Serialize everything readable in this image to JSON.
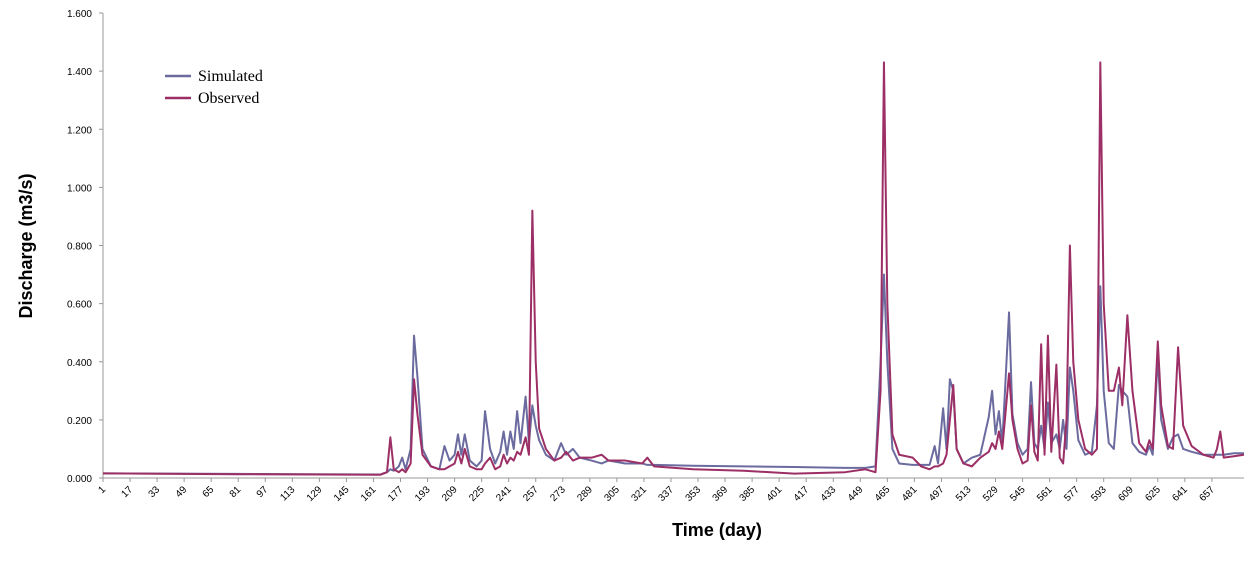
{
  "chart_data": {
    "type": "line",
    "x_label": "Time (day)",
    "y_label": "Discharge  (m3/s)",
    "legend": "upper-left",
    "grid": false,
    "x": [
      1,
      80,
      165,
      169,
      171,
      173,
      176,
      178,
      180,
      183,
      185,
      187,
      190,
      195,
      200,
      203,
      206,
      209,
      211,
      213,
      215,
      218,
      222,
      225,
      227,
      230,
      233,
      236,
      238,
      240,
      242,
      244,
      246,
      248,
      251,
      253,
      255,
      257,
      259,
      263,
      268,
      272,
      275,
      279,
      283,
      290,
      296,
      300,
      310,
      320,
      323,
      327,
      350,
      380,
      410,
      440,
      452,
      458,
      461,
      463,
      465,
      468,
      472,
      480,
      485,
      490,
      493,
      495,
      498,
      500,
      502,
      504,
      506,
      510,
      515,
      520,
      525,
      527,
      529,
      531,
      533,
      537,
      539,
      542,
      545,
      548,
      550,
      552,
      554,
      556,
      558,
      560,
      562,
      565,
      567,
      569,
      571,
      573,
      575,
      578,
      582,
      586,
      589,
      591,
      593,
      596,
      599,
      602,
      604,
      607,
      610,
      614,
      618,
      620,
      622,
      625,
      627,
      631,
      634,
      637,
      640,
      645,
      652,
      658,
      660,
      662,
      664,
      670,
      676
    ],
    "series": [
      {
        "name": "Simulated",
        "color": "#6b6b9f",
        "values": [
          0.016,
          0.014,
          0.012,
          0.02,
          0.03,
          0.025,
          0.04,
          0.07,
          0.03,
          0.1,
          0.49,
          0.35,
          0.1,
          0.04,
          0.03,
          0.11,
          0.06,
          0.08,
          0.15,
          0.08,
          0.15,
          0.06,
          0.04,
          0.06,
          0.23,
          0.1,
          0.05,
          0.09,
          0.16,
          0.08,
          0.16,
          0.1,
          0.23,
          0.12,
          0.28,
          0.12,
          0.25,
          0.18,
          0.13,
          0.08,
          0.06,
          0.12,
          0.08,
          0.1,
          0.07,
          0.06,
          0.05,
          0.06,
          0.05,
          0.05,
          0.045,
          0.045,
          0.042,
          0.04,
          0.038,
          0.035,
          0.035,
          0.04,
          0.4,
          0.7,
          0.4,
          0.1,
          0.05,
          0.045,
          0.045,
          0.045,
          0.11,
          0.05,
          0.24,
          0.1,
          0.34,
          0.3,
          0.1,
          0.05,
          0.07,
          0.08,
          0.21,
          0.3,
          0.15,
          0.23,
          0.12,
          0.57,
          0.22,
          0.12,
          0.08,
          0.1,
          0.33,
          0.12,
          0.1,
          0.18,
          0.1,
          0.26,
          0.12,
          0.15,
          0.1,
          0.2,
          0.1,
          0.38,
          0.3,
          0.13,
          0.08,
          0.09,
          0.25,
          0.66,
          0.3,
          0.12,
          0.1,
          0.32,
          0.3,
          0.28,
          0.12,
          0.09,
          0.08,
          0.11,
          0.08,
          0.42,
          0.2,
          0.1,
          0.14,
          0.15,
          0.1,
          0.09,
          0.08,
          0.08,
          0.08,
          0.08,
          0.08,
          0.085,
          0.085
        ]
      },
      {
        "name": "Observed",
        "color": "#9c2f65",
        "values": [
          0.016,
          0.013,
          0.011,
          0.02,
          0.14,
          0.03,
          0.02,
          0.03,
          0.02,
          0.05,
          0.34,
          0.22,
          0.08,
          0.04,
          0.03,
          0.03,
          0.04,
          0.05,
          0.09,
          0.05,
          0.1,
          0.04,
          0.03,
          0.03,
          0.05,
          0.07,
          0.03,
          0.04,
          0.08,
          0.05,
          0.07,
          0.06,
          0.09,
          0.08,
          0.14,
          0.08,
          0.92,
          0.4,
          0.17,
          0.1,
          0.06,
          0.07,
          0.09,
          0.06,
          0.07,
          0.07,
          0.08,
          0.06,
          0.06,
          0.05,
          0.07,
          0.04,
          0.03,
          0.025,
          0.015,
          0.02,
          0.03,
          0.02,
          0.3,
          1.43,
          0.6,
          0.15,
          0.08,
          0.07,
          0.04,
          0.03,
          0.04,
          0.04,
          0.05,
          0.08,
          0.2,
          0.32,
          0.1,
          0.05,
          0.04,
          0.07,
          0.09,
          0.12,
          0.1,
          0.16,
          0.1,
          0.36,
          0.2,
          0.1,
          0.05,
          0.06,
          0.25,
          0.09,
          0.06,
          0.46,
          0.08,
          0.49,
          0.09,
          0.39,
          0.07,
          0.05,
          0.2,
          0.8,
          0.4,
          0.2,
          0.1,
          0.08,
          0.1,
          1.43,
          0.6,
          0.3,
          0.3,
          0.38,
          0.25,
          0.56,
          0.3,
          0.12,
          0.09,
          0.13,
          0.1,
          0.47,
          0.25,
          0.11,
          0.1,
          0.45,
          0.18,
          0.11,
          0.08,
          0.07,
          0.1,
          0.16,
          0.07,
          0.075,
          0.08
        ]
      }
    ],
    "xlim": [
      1,
      676
    ],
    "xticks": [
      1,
      17,
      33,
      49,
      65,
      81,
      97,
      113,
      129,
      145,
      161,
      177,
      193,
      209,
      225,
      241,
      257,
      273,
      289,
      305,
      321,
      337,
      353,
      369,
      385,
      401,
      417,
      433,
      449,
      465,
      481,
      497,
      513,
      529,
      545,
      561,
      577,
      593,
      609,
      625,
      641,
      657
    ],
    "ylim": [
      0,
      1.6
    ],
    "yticks": [
      {
        "value": 0,
        "label": "0.000"
      },
      {
        "value": 0.2,
        "label": "0.200"
      },
      {
        "value": 0.4,
        "label": "0.400"
      },
      {
        "value": 0.6,
        "label": "0.600"
      },
      {
        "value": 0.8,
        "label": "0.800"
      },
      {
        "value": 1.0,
        "label": "1.000"
      },
      {
        "value": 1.2,
        "label": "1.200"
      },
      {
        "value": 1.4,
        "label": "1.400"
      },
      {
        "value": 1.6,
        "label": "1.600"
      }
    ]
  }
}
